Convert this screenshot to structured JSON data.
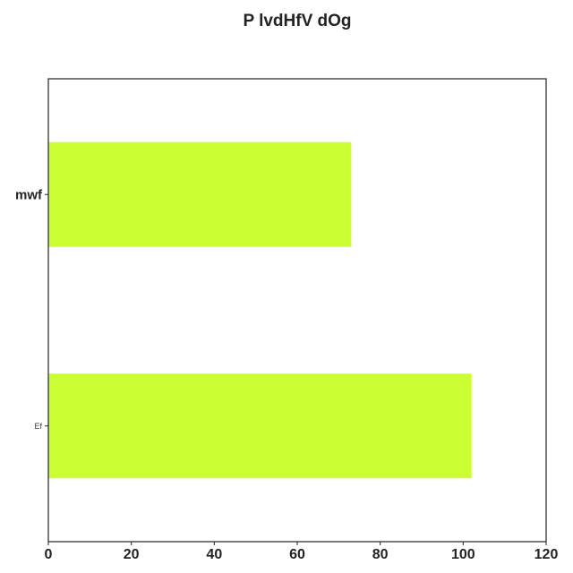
{
  "chart_data": {
    "type": "bar",
    "orientation": "horizontal",
    "title": "P lvdHfV dOg",
    "categories": [
      "mwf",
      "Ef"
    ],
    "values": [
      73,
      102
    ],
    "xlabel": "",
    "ylabel": "",
    "xlim": [
      0,
      120
    ],
    "x_ticks": [
      "0",
      "20",
      "40",
      "60",
      "80",
      "100",
      "120"
    ],
    "grid": false,
    "legend": "none",
    "bar_color": "#ccff33"
  }
}
